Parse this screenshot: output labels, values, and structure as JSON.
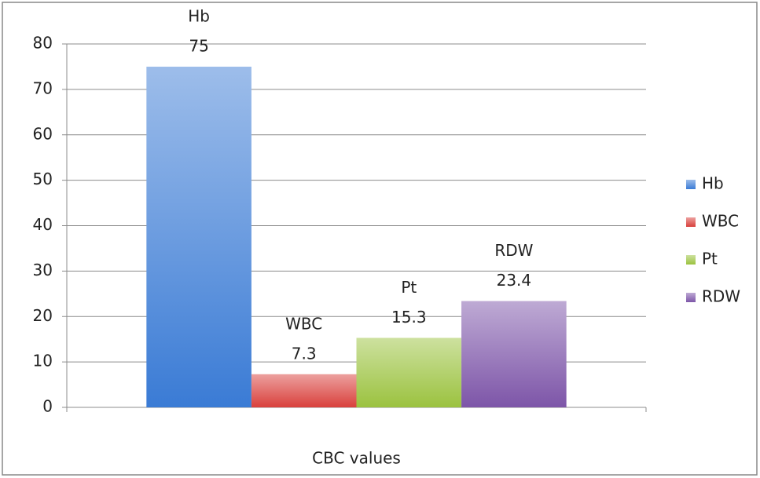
{
  "chart_data": {
    "type": "bar",
    "categories": [
      "CBC values"
    ],
    "series": [
      {
        "name": "Hb",
        "color": "#3a7bd5",
        "values": [
          75
        ]
      },
      {
        "name": "WBC",
        "color": "#d9403c",
        "values": [
          7.3
        ]
      },
      {
        "name": "Pt",
        "color": "#9bc23f",
        "values": [
          15.3
        ]
      },
      {
        "name": "RDW",
        "color": "#7d55a8",
        "values": [
          23.4
        ]
      }
    ],
    "ylim": [
      0,
      80
    ],
    "yticks": [
      0,
      10,
      20,
      30,
      40,
      50,
      60,
      70,
      80
    ],
    "grid": true,
    "legend": "right"
  }
}
